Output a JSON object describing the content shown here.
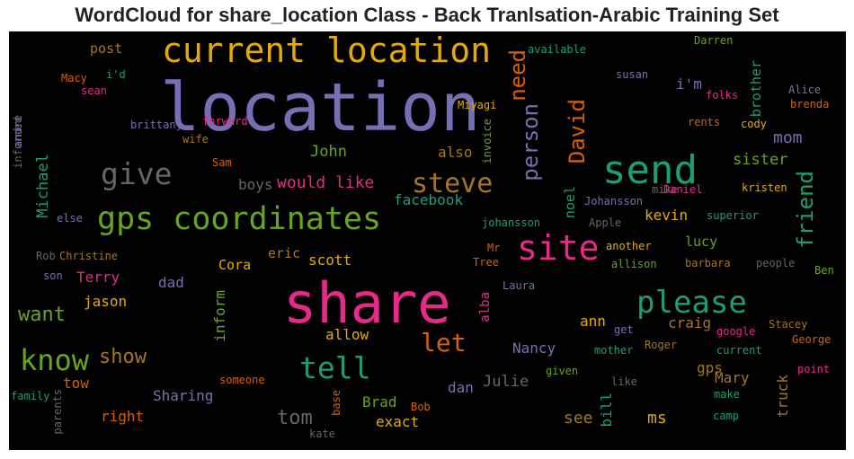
{
  "title": "WordCloud for share_location Class - Back Tranlsation-Arabic Training Set",
  "colors": {
    "background": "#000000",
    "title": "#222222",
    "purple": "#7570b3",
    "green": "#1b9e77",
    "pink": "#e7298a",
    "lime": "#66a61e",
    "gold": "#e6ab02",
    "orange": "#d95f02",
    "brown": "#a6761d",
    "gray": "#666666"
  },
  "chart_data": {
    "type": "wordcloud",
    "words": [
      {
        "text": "location",
        "color": "#7570b3"
      },
      {
        "text": "share",
        "color": "#e7298a"
      },
      {
        "text": "current location",
        "color": "#e6ab02"
      },
      {
        "text": "gps coordinates",
        "color": "#66a61e"
      },
      {
        "text": "send",
        "color": "#1b9e77"
      },
      {
        "text": "site",
        "color": "#e7298a"
      },
      {
        "text": "please",
        "color": "#1b9e77"
      },
      {
        "text": "give",
        "color": "#666666"
      },
      {
        "text": "steve",
        "color": "#a6761d"
      },
      {
        "text": "tell",
        "color": "#1b9e77"
      },
      {
        "text": "know",
        "color": "#66a61e"
      },
      {
        "text": "let",
        "color": "#d95f02"
      },
      {
        "text": "person",
        "color": "#7570b3"
      },
      {
        "text": "David",
        "color": "#d95f02"
      },
      {
        "text": "need",
        "color": "#d95f02"
      },
      {
        "text": "friend",
        "color": "#1b9e77"
      },
      {
        "text": "want",
        "color": "#66a61e"
      },
      {
        "text": "show",
        "color": "#a6761d"
      },
      {
        "text": "tom",
        "color": "#666666"
      },
      {
        "text": "Michael",
        "color": "#1b9e77"
      },
      {
        "text": "would like",
        "color": "#e7298a"
      },
      {
        "text": "John",
        "color": "#66a61e"
      },
      {
        "text": "mom",
        "color": "#7570b3"
      },
      {
        "text": "sister",
        "color": "#66a61e"
      },
      {
        "text": "facebook",
        "color": "#1b9e77"
      },
      {
        "text": "boys",
        "color": "#666666"
      },
      {
        "text": "also",
        "color": "#a6761d"
      },
      {
        "text": "kevin",
        "color": "#e6ab02"
      },
      {
        "text": "lucy",
        "color": "#66a61e"
      },
      {
        "text": "noel",
        "color": "#1b9e77"
      },
      {
        "text": "inform",
        "color": "#66a61e"
      },
      {
        "text": "allow",
        "color": "#e6ab02"
      },
      {
        "text": "ann",
        "color": "#e6ab02"
      },
      {
        "text": "craig",
        "color": "#a6761d"
      },
      {
        "text": "Nancy",
        "color": "#7570b3"
      },
      {
        "text": "gps",
        "color": "#a6761d"
      },
      {
        "text": "Mary",
        "color": "#a6761d"
      },
      {
        "text": "Julie",
        "color": "#666666"
      },
      {
        "text": "dan",
        "color": "#7570b3"
      },
      {
        "text": "Sharing",
        "color": "#7570b3"
      },
      {
        "text": "Brad",
        "color": "#66a61e"
      },
      {
        "text": "exact",
        "color": "#e6ab02"
      },
      {
        "text": "see",
        "color": "#a6761d"
      },
      {
        "text": "ms",
        "color": "#e6ab02"
      },
      {
        "text": "bill",
        "color": "#1b9e77"
      },
      {
        "text": "truck",
        "color": "#a6761d"
      },
      {
        "text": "right",
        "color": "#d95f02"
      },
      {
        "text": "tow",
        "color": "#d95f02"
      },
      {
        "text": "Terry",
        "color": "#e7298a"
      },
      {
        "text": "jason",
        "color": "#e6ab02"
      },
      {
        "text": "dad",
        "color": "#7570b3"
      },
      {
        "text": "Cora",
        "color": "#e6ab02"
      },
      {
        "text": "eric",
        "color": "#a6761d"
      },
      {
        "text": "scott",
        "color": "#e6ab02"
      },
      {
        "text": "i'm",
        "color": "#7570b3"
      },
      {
        "text": "post",
        "color": "#a6761d"
      },
      {
        "text": "brother",
        "color": "#1b9e77"
      },
      {
        "text": "alba",
        "color": "#e7298a"
      },
      {
        "text": "Rob",
        "color": "#666666"
      },
      {
        "text": "Christine",
        "color": "#a6761d"
      },
      {
        "text": "son",
        "color": "#7570b3"
      },
      {
        "text": "else",
        "color": "#7570b3"
      },
      {
        "text": "informed",
        "color": "#666666"
      },
      {
        "text": "andre",
        "color": "#7570b3"
      },
      {
        "text": "Macy",
        "color": "#d95f02"
      },
      {
        "text": "sean",
        "color": "#e7298a"
      },
      {
        "text": "i'd",
        "color": "#1b9e77"
      },
      {
        "text": "brittany",
        "color": "#7570b3"
      },
      {
        "text": "forward",
        "color": "#e7298a"
      },
      {
        "text": "wife",
        "color": "#a6761d"
      },
      {
        "text": "Sam",
        "color": "#d95f02"
      },
      {
        "text": "available",
        "color": "#1b9e77"
      },
      {
        "text": "Darren",
        "color": "#66a61e"
      },
      {
        "text": "susan",
        "color": "#7570b3"
      },
      {
        "text": "folks",
        "color": "#e7298a"
      },
      {
        "text": "Alice",
        "color": "#7570b3"
      },
      {
        "text": "brenda",
        "color": "#d95f02"
      },
      {
        "text": "rents",
        "color": "#d95f02"
      },
      {
        "text": "cody",
        "color": "#e6ab02"
      },
      {
        "text": "Miyagi",
        "color": "#e6ab02"
      },
      {
        "text": "invoice",
        "color": "#66a61e"
      },
      {
        "text": "Johansson",
        "color": "#7570b3"
      },
      {
        "text": "mike",
        "color": "#666666"
      },
      {
        "text": "Daniel",
        "color": "#e7298a"
      },
      {
        "text": "kristen",
        "color": "#e6ab02"
      },
      {
        "text": "johansson",
        "color": "#1b9e77"
      },
      {
        "text": "Apple",
        "color": "#666666"
      },
      {
        "text": "superior",
        "color": "#1b9e77"
      },
      {
        "text": "Mr",
        "color": "#d95f02"
      },
      {
        "text": "Tree",
        "color": "#d95f02"
      },
      {
        "text": "another",
        "color": "#e6ab02"
      },
      {
        "text": "allison",
        "color": "#66a61e"
      },
      {
        "text": "barbara",
        "color": "#a6761d"
      },
      {
        "text": "people",
        "color": "#666666"
      },
      {
        "text": "Ben",
        "color": "#66a61e"
      },
      {
        "text": "Laura",
        "color": "#7570b3"
      },
      {
        "text": "get",
        "color": "#7570b3"
      },
      {
        "text": "google",
        "color": "#e7298a"
      },
      {
        "text": "Stacey",
        "color": "#a6761d"
      },
      {
        "text": "mother",
        "color": "#1b9e77"
      },
      {
        "text": "Roger",
        "color": "#a6761d"
      },
      {
        "text": "current",
        "color": "#1b9e77"
      },
      {
        "text": "George",
        "color": "#d95f02"
      },
      {
        "text": "given",
        "color": "#66a61e"
      },
      {
        "text": "like",
        "color": "#666666"
      },
      {
        "text": "point",
        "color": "#e7298a"
      },
      {
        "text": "make",
        "color": "#1b9e77"
      },
      {
        "text": "camp",
        "color": "#1b9e77"
      },
      {
        "text": "someone",
        "color": "#d95f02"
      },
      {
        "text": "base",
        "color": "#d95f02"
      },
      {
        "text": "Bob",
        "color": "#d95f02"
      },
      {
        "text": "kate",
        "color": "#666666"
      },
      {
        "text": "parents",
        "color": "#666666"
      },
      {
        "text": "family",
        "color": "#1b9e77"
      }
    ]
  }
}
